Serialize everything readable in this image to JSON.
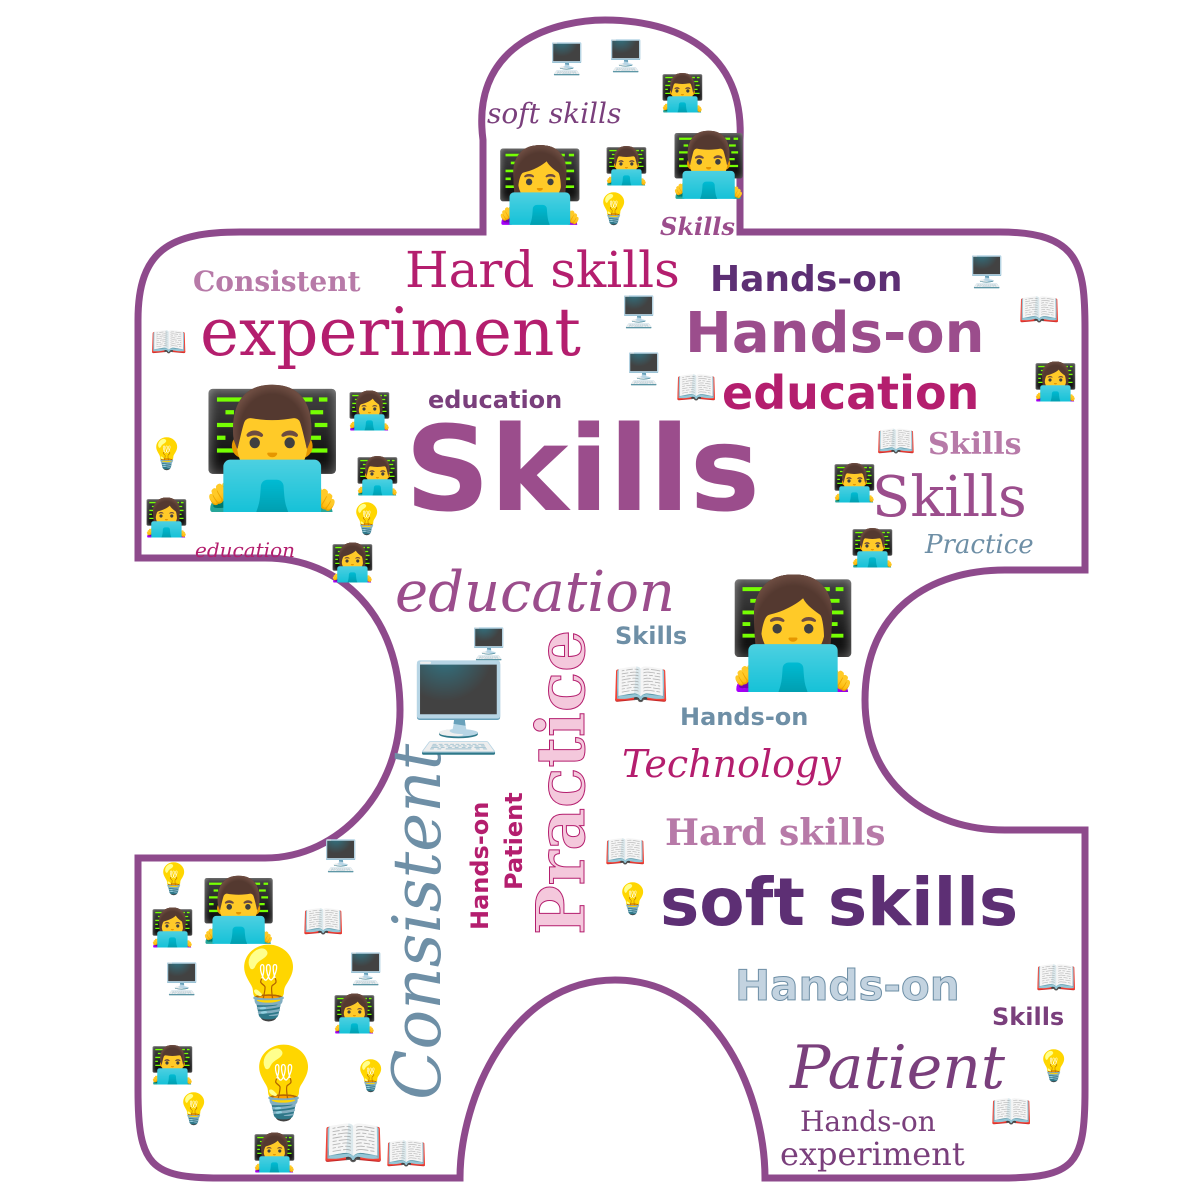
{
  "colors": {
    "outline": "#8e4a8c",
    "purple": "#7a3f7c",
    "magenta": "#b41e6e",
    "mauve": "#9b4d8c",
    "steel": "#6e8fa6",
    "light_purple": "#b77aa8",
    "dark_purple": "#5d2f74"
  },
  "icon_types": [
    "computer-icon",
    "technologist-icon",
    "book-icon",
    "lightbulb-icon"
  ],
  "words": {
    "skills_main": "Skills",
    "skills_right": "Skills",
    "skills_small_top": "Skills",
    "skills_small_right": "Skills",
    "skills_mid": "Skills",
    "skills_bottom": "Skills",
    "experiment_top": "experiment",
    "experiment_bottom": "experiment",
    "hard_skills_top": "Hard skills",
    "hard_skills_bottom": "Hard skills",
    "hands_on_1": "Hands-on",
    "hands_on_2": "Hands-on",
    "hands_on_3": "Hands-on",
    "hands_on_4": "Hands-on",
    "hands_on_5": "Hands-on",
    "hands_on_6": "Hands-on",
    "education_1": "education",
    "education_2": "education",
    "education_3": "education",
    "education_4": "education",
    "consistent_top": "Consistent",
    "consistent_vertical": "Consistent",
    "soft_skills_top": "soft skills",
    "soft_skills_bottom": "soft skills",
    "practice_right": "Practice",
    "practice_vertical": "Practice",
    "technology": "Technology",
    "patient_bottom": "Patient",
    "patient_vertical": "Patient"
  }
}
